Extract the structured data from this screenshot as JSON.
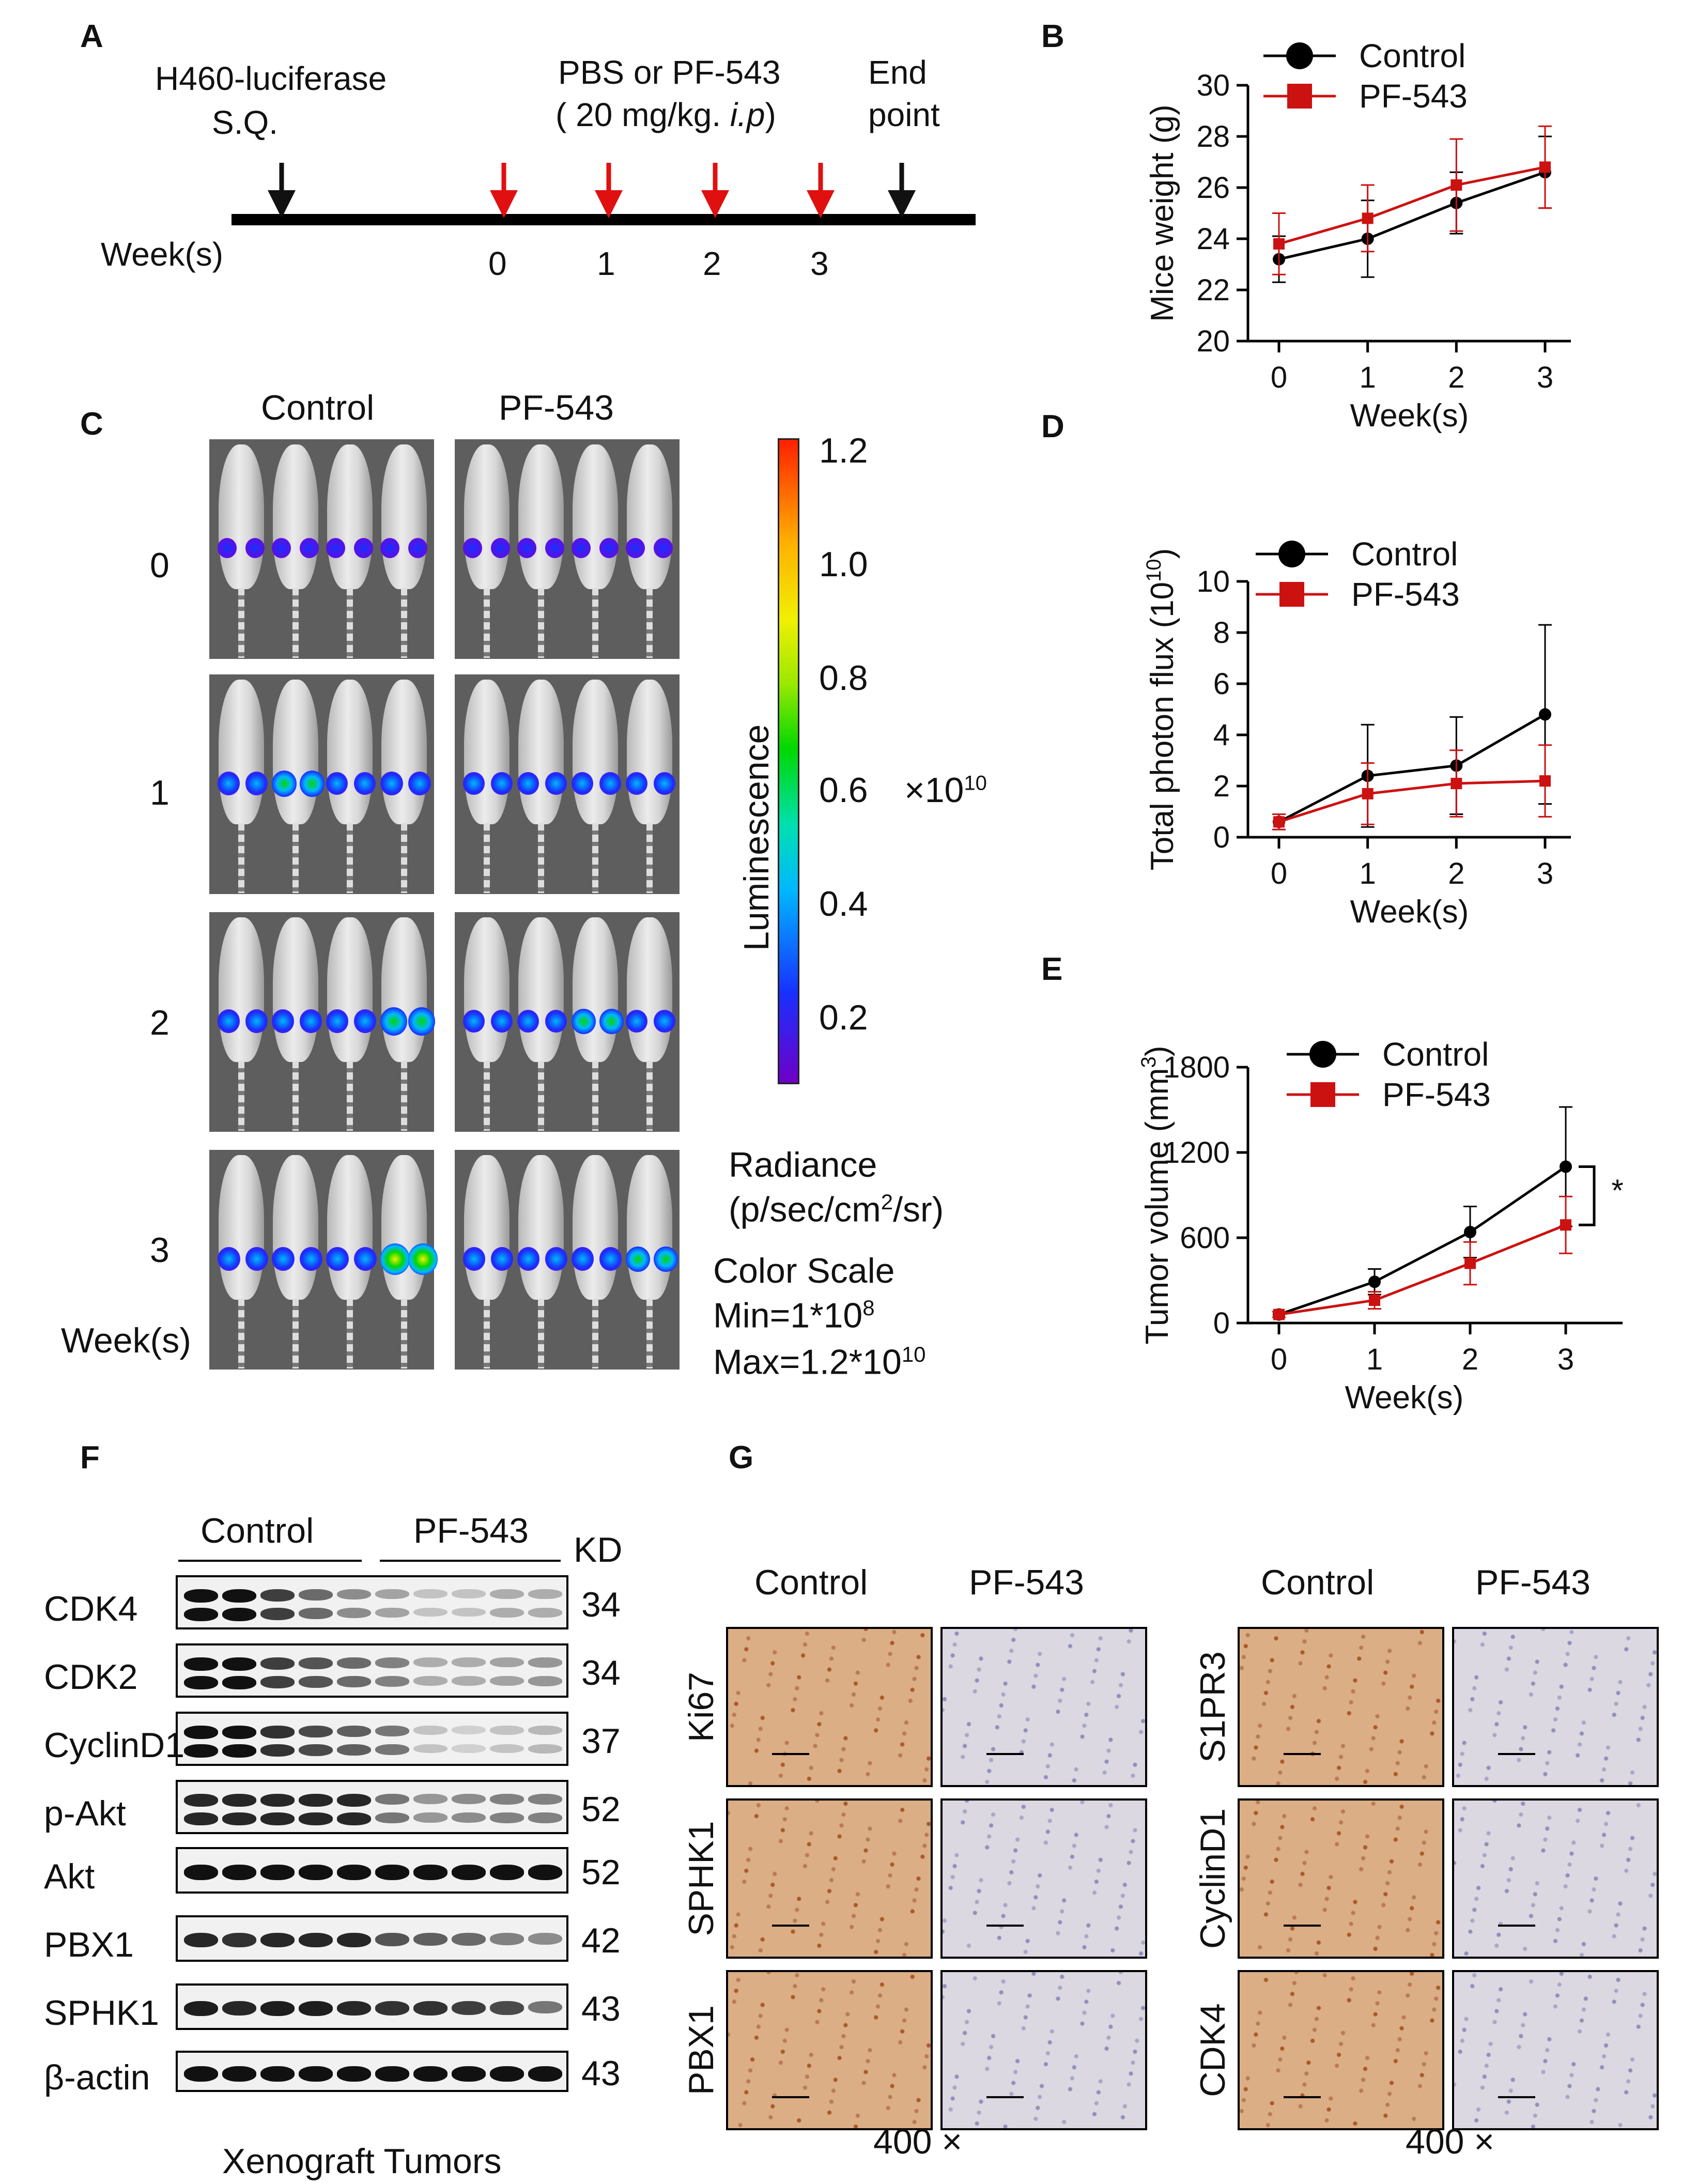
{
  "panel_labels": {
    "a": "A",
    "b": "B",
    "c": "C",
    "d": "D",
    "e": "E",
    "f": "F",
    "g": "G"
  },
  "panel_a": {
    "injection_label_1": "H460-luciferase",
    "injection_label_2": "S.Q.",
    "treatment_label_1": "PBS or PF-543",
    "treatment_label_2_pre": "( 20 mg/kg. ",
    "treatment_label_2_ital": "i.p",
    "treatment_label_2_post": ")",
    "end_label_1": "End",
    "end_label_2": "point",
    "axis_label": "Week(s)",
    "weeks": [
      "0",
      "1",
      "2",
      "3"
    ],
    "colors": {
      "arrow_black": "#111111",
      "arrow_red": "#e01010"
    }
  },
  "panel_c": {
    "group_control": "Control",
    "group_pf": "PF-543",
    "rows": [
      "0",
      "1",
      "2",
      "3"
    ],
    "row_axis_label": "Week(s)",
    "colorbar_ticks": [
      "1.2",
      "1.0",
      "0.8",
      "0.6",
      "0.4",
      "0.2"
    ],
    "colorbar_label": "Luminescence",
    "multiplier": "×10",
    "multiplier_exp": "10",
    "radiance_1": "Radiance",
    "radiance_2": "(p/sec/cm",
    "radiance_2_sup": "2",
    "radiance_2_post": "/sr)",
    "scale_title": "Color Scale",
    "scale_min_pre": "Min=1*10",
    "scale_min_exp": "8",
    "scale_max_pre": "Max=1.2*10",
    "scale_max_exp": "10"
  },
  "chart_data": [
    {
      "id": "B",
      "type": "line",
      "title": "",
      "xlabel": "Week(s)",
      "ylabel": "Mice weight (g)",
      "categories": [
        "0",
        "1",
        "2",
        "3"
      ],
      "ylim": [
        20,
        30
      ],
      "yticks": [
        "20",
        "22",
        "24",
        "26",
        "28",
        "30"
      ],
      "series": [
        {
          "name": "Control",
          "color": "#000000",
          "marker": "circle",
          "values": [
            23.2,
            24.0,
            25.4,
            26.6
          ],
          "err": [
            0.9,
            1.5,
            1.2,
            1.4
          ]
        },
        {
          "name": "PF-543",
          "color": "#cc1111",
          "marker": "square",
          "values": [
            23.8,
            24.8,
            26.1,
            26.8
          ],
          "err": [
            1.2,
            1.3,
            1.8,
            1.6
          ]
        }
      ]
    },
    {
      "id": "D",
      "type": "line",
      "title": "",
      "xlabel": "Week(s)",
      "ylabel_pre": "Total photon flux (10",
      "ylabel_exp": "10",
      "ylabel_post": ")",
      "categories": [
        "0",
        "1",
        "2",
        "3"
      ],
      "ylim": [
        0,
        10
      ],
      "yticks": [
        "0",
        "2",
        "4",
        "6",
        "8",
        "10"
      ],
      "series": [
        {
          "name": "Control",
          "color": "#000000",
          "marker": "circle",
          "values": [
            0.6,
            2.4,
            2.8,
            4.8
          ],
          "err": [
            0.3,
            2.0,
            1.9,
            3.5
          ]
        },
        {
          "name": "PF-543",
          "color": "#cc1111",
          "marker": "square",
          "values": [
            0.6,
            1.7,
            2.1,
            2.2
          ],
          "err": [
            0.3,
            1.2,
            1.3,
            1.4
          ]
        }
      ]
    },
    {
      "id": "E",
      "type": "line",
      "title": "",
      "xlabel": "Week(s)",
      "ylabel_pre": "Tumor volume (mm",
      "ylabel_exp": "3",
      "ylabel_post": ")",
      "categories": [
        "0",
        "1",
        "2",
        "3"
      ],
      "ylim": [
        0,
        1800
      ],
      "yticks": [
        "0",
        "600",
        "1200",
        "1800"
      ],
      "significance": "*",
      "series": [
        {
          "name": "Control",
          "color": "#000000",
          "marker": "circle",
          "values": [
            60,
            290,
            640,
            1100
          ],
          "err": [
            20,
            90,
            180,
            420
          ]
        },
        {
          "name": "PF-543",
          "color": "#cc1111",
          "marker": "square",
          "values": [
            60,
            160,
            420,
            690
          ],
          "err": [
            20,
            60,
            150,
            200
          ]
        }
      ]
    }
  ],
  "panel_f": {
    "group_control": "Control",
    "group_pf": "PF-543",
    "kd_label": "KD",
    "footer": "Xenograft Tumors",
    "proteins": [
      {
        "name": "CDK4",
        "kd": "34",
        "rows": 2,
        "ctrl": [
          1,
          1,
          0.8,
          0.6,
          0.45
        ],
        "pf": [
          0.35,
          0.2,
          0.2,
          0.3,
          0.3
        ]
      },
      {
        "name": "CDK2",
        "kd": "34",
        "rows": 2,
        "ctrl": [
          1,
          1,
          0.8,
          0.7,
          0.6
        ],
        "pf": [
          0.5,
          0.3,
          0.3,
          0.35,
          0.4
        ]
      },
      {
        "name": "CyclinD1",
        "kd": "37",
        "rows": 2,
        "ctrl": [
          1,
          1,
          0.85,
          0.75,
          0.65
        ],
        "pf": [
          0.55,
          0.2,
          0.15,
          0.2,
          0.25
        ]
      },
      {
        "name": "p-Akt",
        "kd": "52",
        "rows": 2,
        "ctrl": [
          0.9,
          0.9,
          0.9,
          0.9,
          0.9
        ],
        "pf": [
          0.55,
          0.4,
          0.45,
          0.5,
          0.5
        ]
      },
      {
        "name": "Akt",
        "kd": "52",
        "rows": 1,
        "ctrl": [
          1,
          1,
          1,
          1,
          1
        ],
        "pf": [
          1,
          1,
          1,
          1,
          1
        ]
      },
      {
        "name": "PBX1",
        "kd": "42",
        "rows": 1,
        "ctrl": [
          0.9,
          0.85,
          0.9,
          0.9,
          0.9
        ],
        "pf": [
          0.7,
          0.65,
          0.6,
          0.5,
          0.45
        ]
      },
      {
        "name": "SPHK1",
        "kd": "43",
        "rows": 1,
        "ctrl": [
          0.95,
          0.9,
          0.95,
          0.95,
          0.9
        ],
        "pf": [
          0.85,
          0.85,
          0.8,
          0.75,
          0.55
        ]
      },
      {
        "name": "β-actin",
        "kd": "43",
        "rows": 1,
        "ctrl": [
          1,
          1,
          1,
          1,
          1
        ],
        "pf": [
          1,
          1,
          1,
          1,
          1
        ]
      }
    ]
  },
  "panel_g": {
    "group_control": "Control",
    "group_pf": "PF-543",
    "left_markers": [
      "Ki67",
      "SPHK1",
      "PBX1"
    ],
    "right_markers": [
      "S1PR3",
      "CyclinD1",
      "CDK4"
    ],
    "magnification": "400 ×",
    "colors": {
      "ctrl_stain": "#c78a58",
      "pf_stain": "#c9c4cf"
    }
  },
  "legend": {
    "control": "Control",
    "pf": "PF-543"
  }
}
